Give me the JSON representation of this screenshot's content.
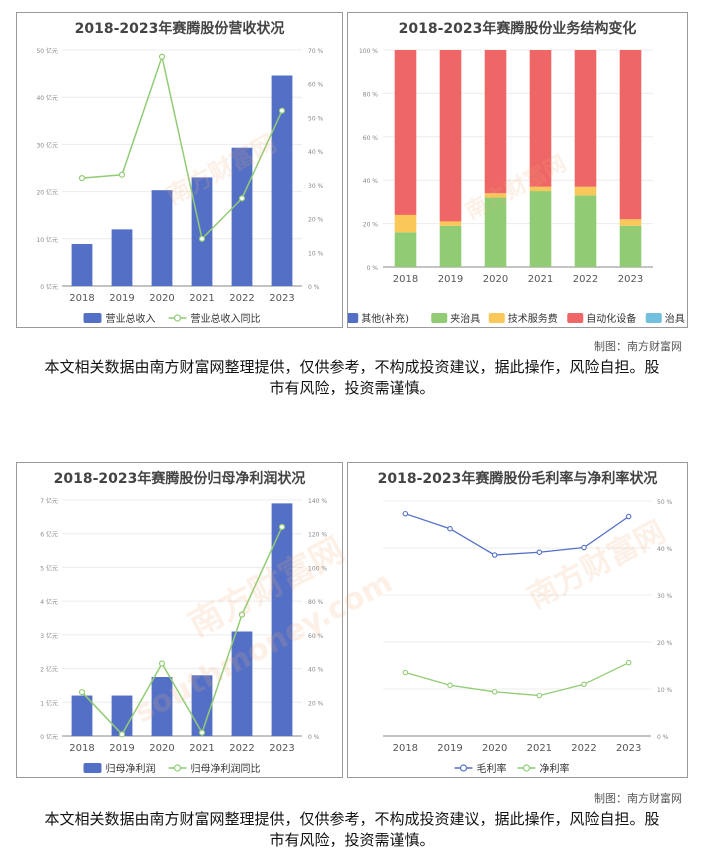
{
  "chart_data": [
    {
      "type": "bar+line",
      "title": "2018-2023年赛腾股份营收状况",
      "categories": [
        "2018",
        "2019",
        "2020",
        "2021",
        "2022",
        "2023"
      ],
      "bar": {
        "name": "营业总收入",
        "values": [
          8.9,
          12.0,
          20.3,
          23.0,
          29.3,
          44.6
        ],
        "color": "#5470c6"
      },
      "line": {
        "name": "营业总收入同比",
        "values": [
          32,
          33,
          68,
          14,
          26,
          52
        ],
        "color": "#91cc75"
      },
      "yleft": {
        "ticks": [
          "0 亿元",
          "10 亿元",
          "20 亿元",
          "30 亿元",
          "40 亿元",
          "50 亿元"
        ],
        "max": 50
      },
      "yright": {
        "ticks": [
          "0 %",
          "10 %",
          "20 %",
          "30 %",
          "40 %",
          "50 %",
          "60 %",
          "70 %"
        ],
        "max": 70
      },
      "legend": "bottom"
    },
    {
      "type": "stacked-bar",
      "title": "2018-2023年赛腾股份业务结构变化",
      "categories": [
        "2018",
        "2019",
        "2020",
        "2021",
        "2022",
        "2023"
      ],
      "series": [
        {
          "name": "其他(补充)",
          "values": [
            0,
            0,
            0,
            0,
            0,
            0
          ],
          "color": "#5470c6"
        },
        {
          "name": "夹治具",
          "values": [
            16,
            19,
            32,
            35,
            33,
            19
          ],
          "color": "#91cc75"
        },
        {
          "name": "技术服务费",
          "values": [
            8,
            2,
            2,
            2,
            4,
            3
          ],
          "color": "#fac858"
        },
        {
          "name": "自动化设备",
          "values": [
            76,
            79,
            66,
            63,
            63,
            78
          ],
          "color": "#ee6666"
        },
        {
          "name": "治具",
          "values": [
            0,
            0,
            0,
            0,
            0,
            0
          ],
          "color": "#73c0de"
        }
      ],
      "yticks": [
        "0 %",
        "20 %",
        "40 %",
        "60 %",
        "80 %",
        "100 %"
      ],
      "ymax": 100,
      "legend": "bottom"
    },
    {
      "type": "bar+line",
      "title": "2018-2023年赛腾股份归母净利润状况",
      "categories": [
        "2018",
        "2019",
        "2020",
        "2021",
        "2022",
        "2023"
      ],
      "bar": {
        "name": "归母净利润",
        "values": [
          1.2,
          1.2,
          1.75,
          1.8,
          3.1,
          6.9
        ],
        "color": "#5470c6"
      },
      "line": {
        "name": "归母净利润同比",
        "values": [
          26,
          1,
          43,
          2,
          72,
          124
        ],
        "color": "#91cc75"
      },
      "yleft": {
        "ticks": [
          "0 亿元",
          "1 亿元",
          "2 亿元",
          "3 亿元",
          "4 亿元",
          "5 亿元",
          "6 亿元",
          "7 亿元"
        ],
        "max": 7
      },
      "yright": {
        "ticks": [
          "0 %",
          "20 %",
          "40 %",
          "60 %",
          "80 %",
          "100 %",
          "120 %",
          "140 %"
        ],
        "max": 140
      },
      "legend": "bottom"
    },
    {
      "type": "line",
      "title": "2018-2023年赛腾股份毛利率与净利率状况",
      "categories": [
        "2018",
        "2019",
        "2020",
        "2021",
        "2022",
        "2023"
      ],
      "series": [
        {
          "name": "毛利率",
          "values": [
            47.3,
            44.1,
            38.5,
            39.1,
            40.1,
            46.7
          ],
          "color": "#5470c6"
        },
        {
          "name": "净利率",
          "values": [
            13.5,
            10.8,
            9.4,
            8.6,
            11.0,
            15.6
          ],
          "color": "#91cc75"
        }
      ],
      "yright": {
        "ticks": [
          "0 %",
          "10 %",
          "20 %",
          "30 %",
          "40 %",
          "50 %"
        ],
        "max": 50
      },
      "legend": "bottom"
    }
  ],
  "credits": [
    "制图：南方财富网",
    "制图：南方财富网"
  ],
  "disclaimers": [
    "本文相关数据由南方财富网整理提供，仅供参考，不构成投资建议，据此操作，风险自担。股市有风险，投资需谨慎。",
    "本文相关数据由南方财富网整理提供，仅供参考，不构成投资建议，据此操作，风险自担。股市有风险，投资需谨慎。"
  ],
  "watermark": {
    "cn": "南方财富网",
    "en": "southmoney.com"
  }
}
